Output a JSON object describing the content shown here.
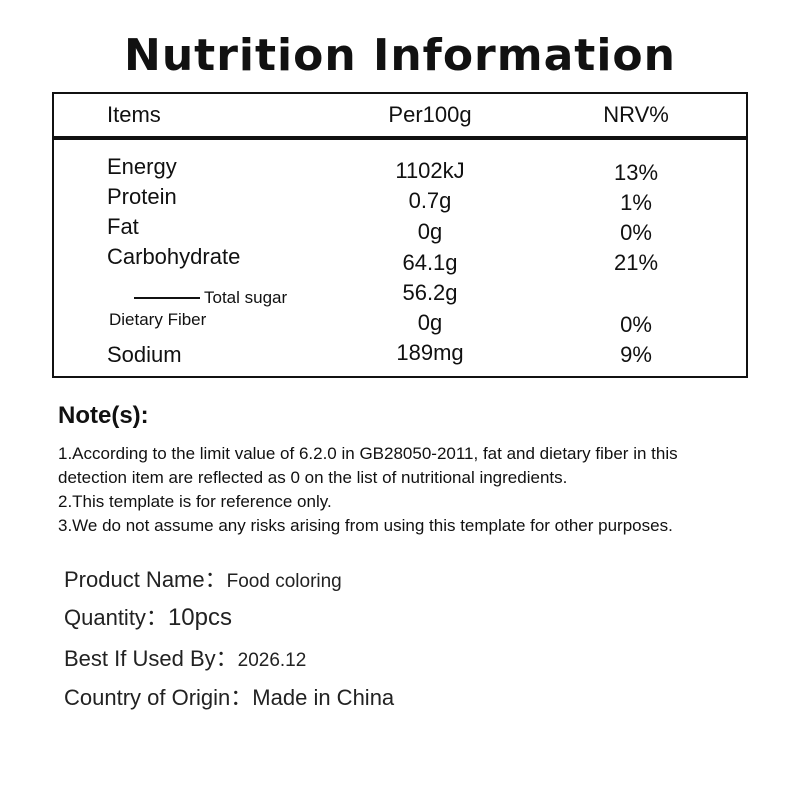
{
  "title": "Nutrition Information",
  "table": {
    "headers": [
      "Items",
      "Per100g",
      "NRV%"
    ],
    "rows": [
      {
        "item": "Energy",
        "per100g": "1102kJ",
        "nrv": "13%"
      },
      {
        "item": "Protein",
        "per100g": "0.7g",
        "nrv": "1%"
      },
      {
        "item": "Fat",
        "per100g": "0g",
        "nrv": "0%"
      },
      {
        "item": "Carbohydrate",
        "per100g": "64.1g",
        "nrv": "21%"
      },
      {
        "item": "Total sugar",
        "per100g": "56.2g",
        "nrv": ""
      },
      {
        "item": "Dietary Fiber",
        "per100g": "0g",
        "nrv": "0%"
      },
      {
        "item": "Sodium",
        "per100g": "189mg",
        "nrv": "9%"
      }
    ]
  },
  "notes": {
    "heading": "Note(s):",
    "lines": [
      "1.According to the limit value of 6.2.0 in GB28050-2011, fat and dietary fiber in this",
      "detection item are reflected as 0 on the list of nutritional ingredients.",
      "2.This template is for reference only.",
      "3.We do not assume any risks arising from using this template for other purposes."
    ]
  },
  "product": {
    "name_label": "Product Name：",
    "name_value": "Food coloring",
    "quantity_label": "Quantity：",
    "quantity_value": "10pcs",
    "best_before_label": "Best If Used By：",
    "best_before_value": "2026.12",
    "origin_label": "Country of Origin：",
    "origin_value": "Made in China"
  }
}
